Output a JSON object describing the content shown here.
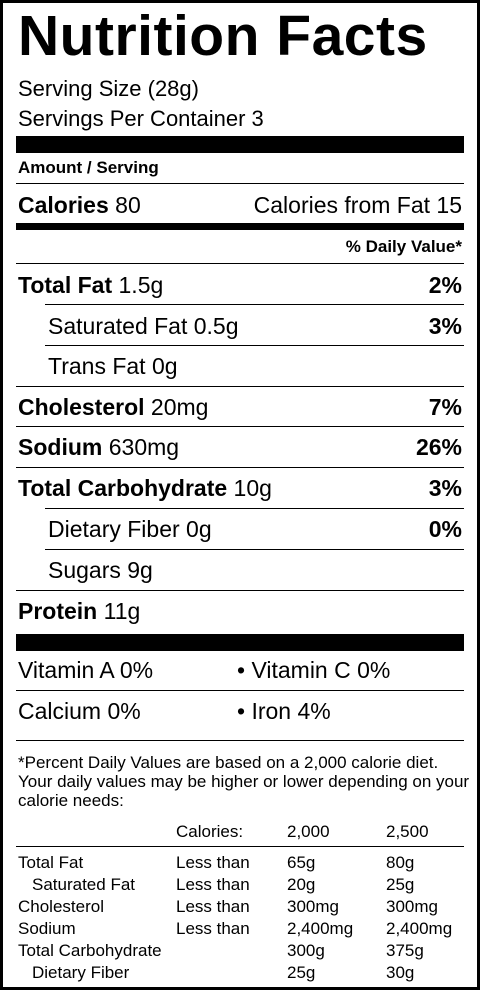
{
  "title": "Nutrition Facts",
  "serving_size": "Serving Size (28g)",
  "servings_per_container": "Servings Per Container 3",
  "amount_per_serving": "Amount / Serving",
  "calories": {
    "label": "Calories",
    "value": "80",
    "from_fat_label": "Calories from Fat",
    "from_fat_value": "15"
  },
  "dv_header": "% Daily Value*",
  "nutrients": [
    {
      "label": "Total Fat",
      "amount": "1.5g",
      "dv": "2%"
    },
    {
      "label": "Saturated Fat",
      "amount": "0.5g",
      "dv": "3%"
    },
    {
      "label": "Trans Fat",
      "amount": "0g",
      "dv": ""
    },
    {
      "label": "Cholesterol",
      "amount": "20mg",
      "dv": "7%"
    },
    {
      "label": "Sodium",
      "amount": "630mg",
      "dv": "26%"
    },
    {
      "label": "Total Carbohydrate",
      "amount": "10g",
      "dv": "3%"
    },
    {
      "label": "Dietary Fiber",
      "amount": "0g",
      "dv": "0%"
    },
    {
      "label": "Sugars",
      "amount": "9g",
      "dv": ""
    },
    {
      "label": "Protein",
      "amount": "11g",
      "dv": ""
    }
  ],
  "vitamins": {
    "vitamin_a": "Vitamin A 0%",
    "vitamin_c": "• Vitamin C 0%",
    "calcium": "Calcium 0%",
    "iron": "• Iron 4%"
  },
  "footnote": "*Percent Daily Values are based on a 2,000 calorie diet. Your daily values may be higher or lower depending on your calorie needs:",
  "dv_table": {
    "header": [
      "Calories:",
      "2,000",
      "2,500"
    ],
    "rows": [
      {
        "nutrient": "Total Fat",
        "qualifier": "Less than",
        "v2000": "65g",
        "v2500": "80g"
      },
      {
        "nutrient": "Saturated Fat",
        "qualifier": "Less than",
        "v2000": "20g",
        "v2500": "25g"
      },
      {
        "nutrient": "Cholesterol",
        "qualifier": "Less than",
        "v2000": "300mg",
        "v2500": "300mg"
      },
      {
        "nutrient": "Sodium",
        "qualifier": "Less than",
        "v2000": "2,400mg",
        "v2500": "2,400mg"
      },
      {
        "nutrient": "Total Carbohydrate",
        "qualifier": "",
        "v2000": "300g",
        "v2500": "375g"
      },
      {
        "nutrient": "Dietary Fiber",
        "qualifier": "",
        "v2000": "25g",
        "v2500": "30g"
      }
    ]
  }
}
